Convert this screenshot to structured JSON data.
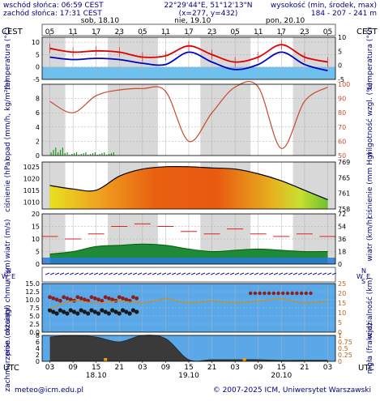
{
  "header": {
    "sunrise": "wschód słońca: 06:59 CEST",
    "sunset": "zachód słońca: 17:31 CEST",
    "coords": "22°29'44\"E, 51°12'13\"N",
    "grid": "(x=277, y=432)",
    "elev_title": "wysokość (min, środek, max)",
    "elev_values": "184 - 207 - 241 m"
  },
  "timeaxis": {
    "tz_left": "CEST",
    "tz_right": "CEST",
    "tz_bottom": "UTC",
    "tz_bottom_right": "UTC",
    "top_hours": [
      "05",
      "11",
      "17",
      "23",
      "05",
      "11",
      "17",
      "23",
      "05",
      "11",
      "17",
      "23",
      "05"
    ],
    "top_days": [
      "sob, 18.10",
      "nie, 19.10",
      "pon, 20.10"
    ],
    "bottom_hours": [
      "03",
      "09",
      "15",
      "21",
      "03",
      "09",
      "15",
      "21",
      "03",
      "09",
      "15",
      "21",
      "03"
    ],
    "bottom_days": [
      "18.10",
      "19.10",
      "20.10"
    ]
  },
  "footer": {
    "email": "meteo@icm.edu.pl",
    "copyright": "© 2007-2025 ICM, Uniwersytet Warszawski"
  },
  "chart_data": [
    {
      "type": "line",
      "id": "temperature",
      "ylabel": "temperatura (°C)",
      "ylabel_right": "temperatura (°C)",
      "ylim": [
        -5,
        12
      ],
      "ticks": [
        -5,
        0,
        5,
        10
      ],
      "x_hours_utc": [
        0,
        6,
        12,
        18,
        24,
        30,
        36,
        42,
        48,
        54,
        60,
        66,
        72
      ],
      "series": [
        {
          "name": "max",
          "color": "#e00000",
          "values": [
            7.5,
            6.0,
            6.5,
            6.0,
            4.0,
            4.5,
            8.5,
            5.0,
            2.0,
            4.0,
            9.0,
            4.0,
            2.0
          ]
        },
        {
          "name": "min",
          "color": "#0000c0",
          "values": [
            4.0,
            3.0,
            3.5,
            3.0,
            1.5,
            1.0,
            6.0,
            2.0,
            -1.0,
            1.0,
            6.0,
            1.0,
            -1.5
          ]
        }
      ]
    },
    {
      "type": "line",
      "id": "precip-humidity",
      "ylabel": "opad (mm/h, kg/m²/h)",
      "ylabel_right": "wilgotność wzgl. (%)",
      "ylim": [
        0,
        10
      ],
      "ticks": [
        0,
        2,
        4,
        6,
        8
      ],
      "ylim_right": [
        50,
        100
      ],
      "ticks_right": [
        50,
        60,
        70,
        80,
        90,
        100
      ],
      "x_hours_utc": [
        0,
        6,
        12,
        18,
        24,
        30,
        36,
        42,
        48,
        54,
        60,
        66,
        72
      ],
      "series": [
        {
          "name": "humidity",
          "color": "#c84a2a",
          "values": [
            88,
            80,
            92,
            96,
            97,
            95,
            60,
            80,
            98,
            98,
            55,
            88,
            98
          ]
        }
      ]
    },
    {
      "type": "area",
      "id": "pressure",
      "ylabel": "ciśnienie (hPa)",
      "ylabel_right": "ciśnienie (mm Hg)",
      "ylim": [
        1007,
        1027
      ],
      "ticks": [
        1010,
        1015,
        1020,
        1025
      ],
      "ticks_right": [
        758,
        761,
        765,
        769
      ],
      "x_hours_utc": [
        0,
        6,
        12,
        18,
        24,
        30,
        36,
        42,
        48,
        54,
        60,
        66,
        72
      ],
      "series": [
        {
          "name": "pressure",
          "color": "#000000",
          "values": [
            1017,
            1015.5,
            1015,
            1021,
            1024,
            1025,
            1025,
            1024.5,
            1024,
            1022,
            1019,
            1015,
            1011
          ]
        }
      ]
    },
    {
      "type": "line",
      "id": "wind",
      "ylabel": "wiatr (m/s)",
      "ylabel_right": "wiatr (km/h)",
      "ylim": [
        0,
        20
      ],
      "ticks": [
        0,
        5,
        10,
        15,
        20
      ],
      "ticks_right": [
        0,
        18,
        36,
        54,
        72
      ],
      "x_hours_utc": [
        0,
        6,
        12,
        18,
        24,
        30,
        36,
        42,
        48,
        54,
        60,
        66,
        72
      ],
      "series": [
        {
          "name": "gusts",
          "color": "#e02020",
          "values": [
            11,
            10,
            12,
            15,
            16,
            15,
            13,
            12,
            14,
            12,
            11,
            12,
            11
          ]
        },
        {
          "name": "wind",
          "color": "#00a000",
          "values": [
            4,
            5,
            7,
            7.5,
            8,
            7.5,
            6,
            5,
            5.5,
            6,
            5.5,
            5,
            5
          ]
        }
      ]
    },
    {
      "type": "scatter",
      "id": "cloud-base-visibility",
      "ylabel": "pion. rozciągł. chmur (km)",
      "ylabel_right": "widzialność (km)",
      "ylim": [
        0,
        15
      ],
      "ticks": [
        0,
        2.5,
        5.0,
        7.5,
        10.0,
        12.5,
        15.0
      ],
      "ticks_right": [
        0,
        5,
        10,
        15,
        20,
        25
      ],
      "x_hours_utc": [
        0,
        6,
        12,
        18,
        24,
        30,
        36,
        42,
        48,
        54,
        60,
        66,
        72
      ],
      "series": [
        {
          "name": "visibility",
          "color": "#e08a00",
          "values": [
            12,
            16,
            15,
            16,
            15,
            17,
            15,
            16,
            15,
            16,
            17,
            15,
            16
          ]
        }
      ]
    },
    {
      "type": "area",
      "id": "cloud-cover",
      "ylabel": "zachmurzenie (oktanty)",
      "ylabel_right": "mgła (frakcja)",
      "ylim": [
        0,
        8
      ],
      "ticks": [
        0,
        2,
        4,
        6,
        8
      ],
      "ticks_right": [
        0,
        0.25,
        0.5,
        0.75,
        1
      ],
      "x_hours_utc": [
        0,
        6,
        12,
        18,
        24,
        30,
        36,
        42,
        48,
        54,
        60,
        66,
        72
      ],
      "series": [
        {
          "name": "total",
          "color": "#404040",
          "values": [
            7.5,
            8,
            7.5,
            6,
            8,
            7,
            0.5,
            0.5,
            0.5,
            0.5,
            0.3,
            0.3,
            0.3
          ]
        }
      ]
    }
  ]
}
